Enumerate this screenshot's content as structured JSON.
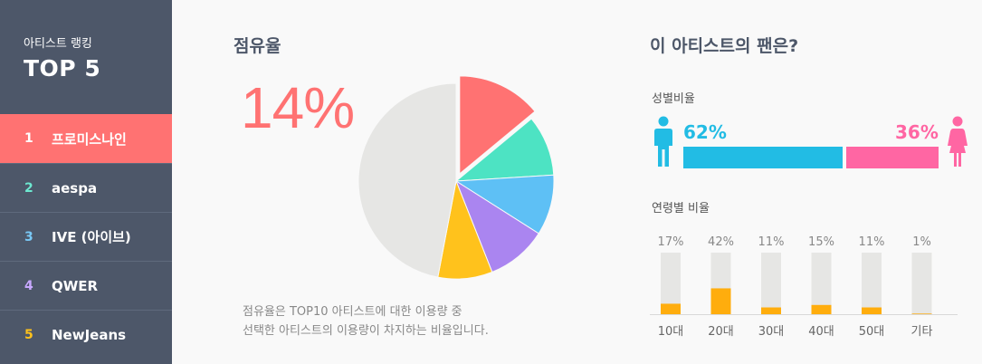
{
  "sidebar": {
    "subtitle": "아티스트 랭킹",
    "title": "TOP 5",
    "items": [
      {
        "rank": "1",
        "name": "프로미스나인",
        "color": "#ffffff"
      },
      {
        "rank": "2",
        "name": "aespa",
        "color": "#6de8d0"
      },
      {
        "rank": "3",
        "name": "IVE (아이브)",
        "color": "#79c8f5"
      },
      {
        "rank": "4",
        "name": "QWER",
        "color": "#c8a8ff"
      },
      {
        "rank": "5",
        "name": "NewJeans",
        "color": "#ffc21c"
      }
    ]
  },
  "share": {
    "title": "점유율",
    "percent": "14%",
    "description_line1": "점유율은 TOP10 아티스트에 대한 이용량 중",
    "description_line2": "선택한 아티스트의 이용량이 차지하는 비율입니다."
  },
  "fans": {
    "title": "이 아티스트의 팬은?",
    "gender_label": "성별비율",
    "male_percent": "62%",
    "female_percent": "36%",
    "male_share": 0.62,
    "female_share": 0.36,
    "male_color": "#22bce4",
    "female_color": "#ff66a3",
    "age_label": "연령별 비율"
  },
  "chart_data": [
    {
      "type": "pie",
      "slices": [
        {
          "value": 14,
          "color": "#ff7272",
          "exploded": true
        },
        {
          "value": 10,
          "color": "#4de3c3"
        },
        {
          "value": 10,
          "color": "#5ec0f5"
        },
        {
          "value": 10,
          "color": "#aa85f0"
        },
        {
          "value": 9,
          "color": "#ffc21c"
        },
        {
          "value": 47,
          "color": "#e6e6e4"
        }
      ]
    },
    {
      "type": "bar",
      "categories": [
        "10대",
        "20대",
        "30대",
        "40대",
        "50대",
        "기타"
      ],
      "value_labels": [
        "17%",
        "42%",
        "11%",
        "15%",
        "11%",
        "1%"
      ],
      "values": [
        17,
        42,
        11,
        15,
        11,
        1
      ],
      "ylim": [
        0,
        100
      ],
      "bar_color": "#ffad0d",
      "track_color": "#e6e6e4"
    }
  ]
}
